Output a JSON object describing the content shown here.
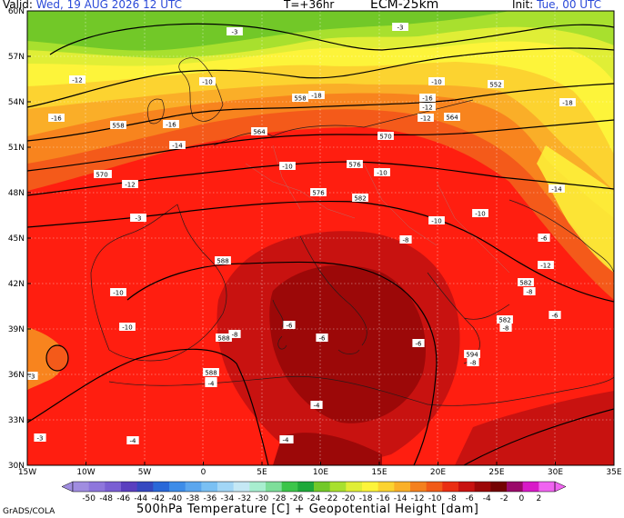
{
  "header": {
    "valid_label": "Valid:",
    "valid_time": "Wed, 19 AUG 2026  12 UTC",
    "lead_time": "T=+36hr",
    "model": "ECM-25km",
    "init_label": "Init:",
    "init_time": "Tue, 00 UTC"
  },
  "map": {
    "lat_ticks": [
      "60N",
      "57N",
      "54N",
      "51N",
      "48N",
      "45N",
      "42N",
      "39N",
      "36N",
      "33N",
      "30N"
    ],
    "lon_ticks": [
      "15W",
      "10W",
      "5W",
      "0",
      "5E",
      "10E",
      "15E",
      "20E",
      "25E",
      "30E",
      "35E"
    ],
    "temperature_labels": [
      "-20",
      "-20",
      "-20",
      "-20",
      "-18",
      "-18",
      "-18",
      "-16",
      "-16",
      "-16",
      "-14",
      "-14",
      "-14",
      "-12",
      "-12",
      "-12",
      "-12",
      "-10",
      "-10",
      "-10",
      "-10",
      "-10",
      "-10",
      "-10",
      "-8",
      "-8",
      "-8",
      "-8",
      "-8",
      "-8",
      "-8",
      "-8",
      "-6",
      "-6",
      "-6",
      "-6",
      "-6",
      "-4",
      "-4",
      "-4",
      "-4",
      "-3",
      "-3",
      "-3",
      "-3",
      "-3",
      "-12",
      "-10",
      "-10"
    ],
    "height_labels": [
      "552",
      "558",
      "558",
      "564",
      "564",
      "570",
      "570",
      "576",
      "576",
      "582",
      "582",
      "582",
      "588",
      "588",
      "594",
      "588"
    ]
  },
  "colorbar": {
    "values": [
      "-50",
      "-48",
      "-46",
      "-44",
      "-42",
      "-40",
      "-38",
      "-36",
      "-34",
      "-32",
      "-30",
      "-28",
      "-26",
      "-24",
      "-22",
      "-20",
      "-18",
      "-16",
      "-14",
      "-12",
      "-10",
      "-8",
      "-6",
      "-4",
      "-2",
      "0",
      "2"
    ],
    "colors": [
      "#a08de0",
      "#8e76dc",
      "#7a5fd3",
      "#5a3fbf",
      "#3548c0",
      "#2a68d8",
      "#3d8ce8",
      "#5ba6ee",
      "#7ac0f3",
      "#a2d6f6",
      "#c5e8f5",
      "#a8eecf",
      "#7ede9a",
      "#3cc54a",
      "#1ea83a",
      "#72c828",
      "#a8e02e",
      "#e0ee36",
      "#fdf43a",
      "#fcd330",
      "#fab028",
      "#f4801e",
      "#f15a18",
      "#ea2e12",
      "#c81210",
      "#9c0808",
      "#740202",
      "#9a0a6a",
      "#d81ac8",
      "#f064f0"
    ]
  },
  "footer": {
    "title": "500hPa Temperature [C] + Geopotential Height [dam]",
    "credit": "GrADS/COLA"
  }
}
